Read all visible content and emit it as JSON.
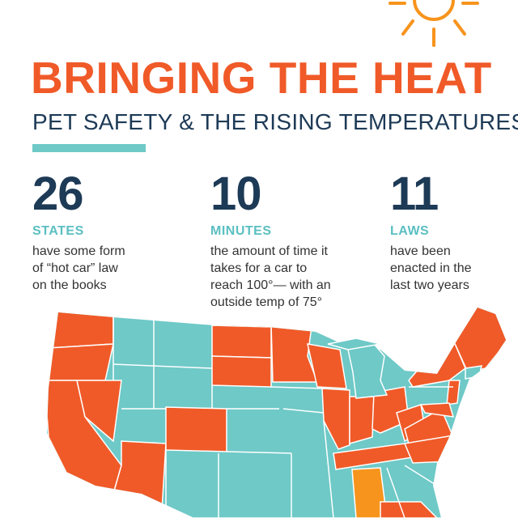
{
  "header": {
    "title": "BRINGING THE HEAT",
    "subtitle": "PET SAFETY & THE RISING TEMPERATURES"
  },
  "stats": [
    {
      "number": "26",
      "unit": "STATES",
      "line1": "have some form",
      "line2": "of “hot car” law",
      "line3": "on the books"
    },
    {
      "number": "10",
      "unit": "MINUTES",
      "line1": "the amount of time it",
      "line2": "takes for a car to",
      "line3": "reach 100°— with an",
      "line4": "outside temp of 75°"
    },
    {
      "number": "11",
      "unit": "LAWS",
      "line1": "have been",
      "line2": "enacted in the",
      "line3": "last two years"
    }
  ],
  "colors": {
    "law_state": "#f05a28",
    "no_law_state": "#6ec9c7",
    "highlight_state": "#f7941d",
    "title": "#f05a28",
    "navy": "#1d3a56",
    "accent": "#6ec9c7",
    "sun": "#f7941d"
  }
}
